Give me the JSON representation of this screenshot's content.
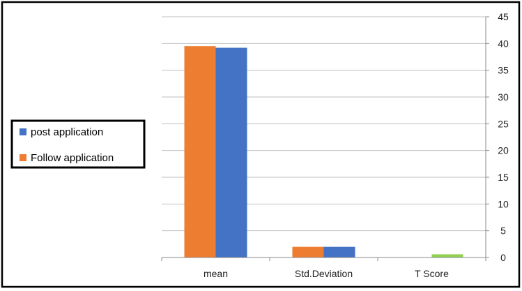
{
  "chart_data": {
    "type": "bar",
    "title": "",
    "xlabel": "",
    "ylabel": "",
    "categories": [
      "mean",
      "Std.Deviation",
      "T Score"
    ],
    "series": [
      {
        "name": "Follow application",
        "color": "#ED7D31",
        "values": [
          39.5,
          2.0,
          0.0
        ]
      },
      {
        "name": "post application",
        "color": "#4472C4",
        "values": [
          39.2,
          2.0,
          0.0
        ]
      },
      {
        "color": "#92D050",
        "values": [
          0.0,
          0.0,
          0.6
        ]
      }
    ],
    "ylim": [
      0,
      45
    ],
    "yticks": [
      0,
      5,
      10,
      15,
      20,
      25,
      30,
      35,
      40,
      45
    ],
    "y_axis_side": "right",
    "grid": true,
    "legend": {
      "position": "left",
      "entries": [
        "post application",
        "Follow application"
      ],
      "colors": [
        "#4472C4",
        "#ED7D31"
      ]
    }
  }
}
